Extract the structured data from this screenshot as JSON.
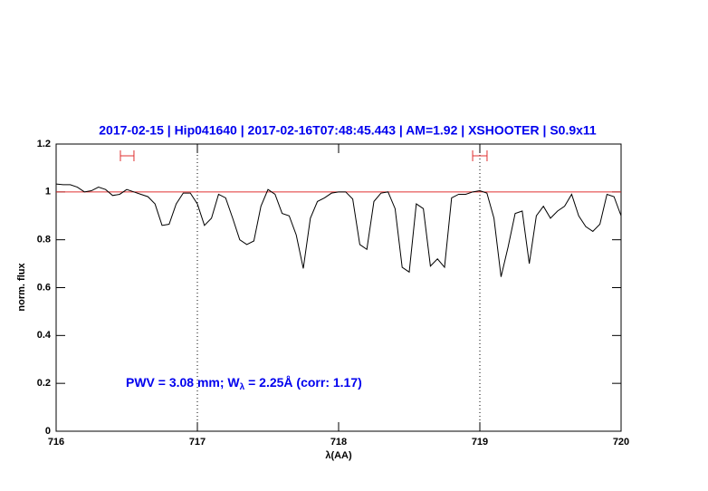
{
  "chart_data": {
    "type": "line",
    "title": "2017-02-15 | Hip041640 | 2017-02-16T07:48:45.443 | AM=1.92 | XSHOOTER | S0.9x11",
    "annotation": [
      "PWV = 3.08 mm; W",
      "λ",
      " = 2.25Å (corr: 1.17)"
    ],
    "x_label": "λ(AA)",
    "y_label": "norm. flux",
    "xlim": [
      716,
      720
    ],
    "ylim": [
      0,
      1.2
    ],
    "xticks": [
      716,
      717,
      718,
      719,
      720
    ],
    "yticks": [
      0,
      0.2,
      0.4,
      0.6,
      0.8,
      1,
      1.2
    ],
    "hline": 1,
    "hline_color": "#e03030",
    "vlines": [
      717,
      719
    ],
    "markers": [
      {
        "x": [
          716.455,
          716.551
        ],
        "y": 1.151
      },
      {
        "x": [
          718.949,
          719.051
        ],
        "y": 1.151
      }
    ],
    "marker_color": "#e03030",
    "title_color": "#0000ee",
    "x": [
      716,
      716.05,
      716.1,
      716.15,
      716.2,
      716.25,
      716.3,
      716.35,
      716.4,
      716.45,
      716.5,
      716.55,
      716.6,
      716.65,
      716.7,
      716.75,
      716.8,
      716.85,
      716.9,
      716.95,
      717,
      717.05,
      717.1,
      717.15,
      717.2,
      717.25,
      717.3,
      717.35,
      717.4,
      717.45,
      717.5,
      717.55,
      717.6,
      717.65,
      717.7,
      717.75,
      717.8,
      717.85,
      717.9,
      717.95,
      718,
      718.05,
      718.1,
      718.15,
      718.2,
      718.25,
      718.3,
      718.35,
      718.4,
      718.45,
      718.5,
      718.55,
      718.6,
      718.65,
      718.7,
      718.75,
      718.8,
      718.85,
      718.9,
      718.95,
      719,
      719.05,
      719.1,
      719.15,
      719.2,
      719.25,
      719.3,
      719.35,
      719.4,
      719.45,
      719.5,
      719.55,
      719.6,
      719.65,
      719.7,
      719.75,
      719.8,
      719.85,
      719.9,
      719.95,
      720
    ],
    "series": [
      {
        "name": "flux",
        "color": "#000000",
        "values": [
          1.033,
          1.03,
          1.03,
          1.02,
          1.0,
          1.005,
          1.02,
          1.01,
          0.985,
          0.99,
          1.01,
          1.0,
          0.99,
          0.98,
          0.95,
          0.86,
          0.865,
          0.95,
          0.995,
          0.995,
          0.95,
          0.86,
          0.89,
          0.99,
          0.975,
          0.89,
          0.8,
          0.78,
          0.795,
          0.94,
          1.01,
          0.99,
          0.91,
          0.9,
          0.82,
          0.68,
          0.89,
          0.96,
          0.975,
          0.995,
          1.0,
          1.0,
          0.97,
          0.78,
          0.76,
          0.96,
          0.995,
          1.0,
          0.93,
          0.685,
          0.665,
          0.95,
          0.93,
          0.69,
          0.72,
          0.685,
          0.975,
          0.99,
          0.99,
          1.0,
          1.005,
          0.995,
          0.89,
          0.645,
          0.77,
          0.91,
          0.92,
          0.7,
          0.9,
          0.94,
          0.89,
          0.92,
          0.94,
          0.99,
          0.9,
          0.855,
          0.835,
          0.865,
          0.99,
          0.98,
          0.9
        ]
      }
    ]
  }
}
